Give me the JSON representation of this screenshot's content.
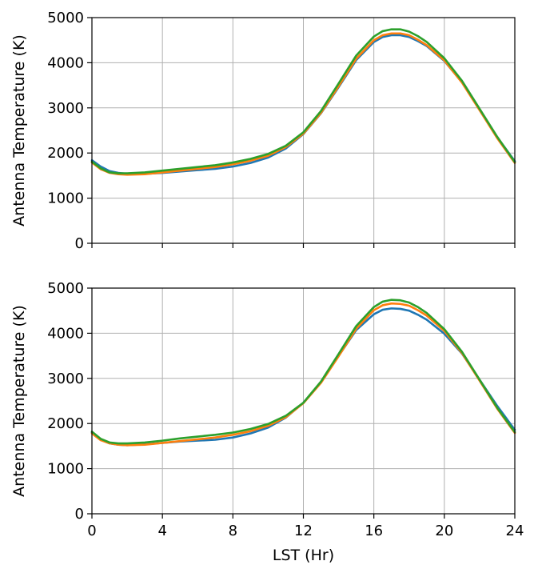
{
  "chart_data": [
    {
      "type": "line",
      "ylabel": "Antenna Temperature (K)",
      "xlabel": "",
      "xlim": [
        0,
        24
      ],
      "ylim": [
        0,
        5000
      ],
      "xticks": [
        0,
        4,
        8,
        12,
        16,
        20,
        24
      ],
      "xtick_labels_visible": false,
      "yticks": [
        0,
        1000,
        2000,
        3000,
        4000,
        5000
      ],
      "grid": true,
      "x": [
        0,
        0.5,
        1,
        1.5,
        2,
        3,
        4,
        5,
        6,
        7,
        8,
        9,
        10,
        11,
        12,
        13,
        14,
        15,
        16,
        16.5,
        17,
        17.5,
        18,
        18.5,
        19,
        20,
        21,
        22,
        23,
        24
      ],
      "series": [
        {
          "color": "#1f77b4",
          "values": [
            1840,
            1700,
            1600,
            1560,
            1540,
            1540,
            1560,
            1590,
            1620,
            1650,
            1700,
            1780,
            1900,
            2100,
            2420,
            2880,
            3460,
            4060,
            4460,
            4570,
            4610,
            4610,
            4570,
            4480,
            4370,
            4040,
            3570,
            2960,
            2350,
            1820
          ]
        },
        {
          "color": "#ff7f0e",
          "values": [
            1790,
            1640,
            1560,
            1530,
            1520,
            1530,
            1570,
            1610,
            1650,
            1690,
            1750,
            1830,
            1940,
            2130,
            2430,
            2890,
            3480,
            4090,
            4500,
            4610,
            4650,
            4650,
            4610,
            4510,
            4390,
            4050,
            3560,
            2950,
            2330,
            1780
          ]
        },
        {
          "color": "#2ca02c",
          "values": [
            1810,
            1660,
            1570,
            1550,
            1550,
            1570,
            1610,
            1650,
            1690,
            1730,
            1790,
            1870,
            1980,
            2160,
            2460,
            2930,
            3540,
            4160,
            4580,
            4700,
            4740,
            4740,
            4690,
            4590,
            4460,
            4100,
            3600,
            2980,
            2360,
            1800
          ]
        }
      ]
    },
    {
      "type": "line",
      "ylabel": "Antenna Temperature (K)",
      "xlabel": "LST (Hr)",
      "xlim": [
        0,
        24
      ],
      "ylim": [
        0,
        5000
      ],
      "xticks": [
        0,
        4,
        8,
        12,
        16,
        20,
        24
      ],
      "xtick_labels_visible": true,
      "yticks": [
        0,
        1000,
        2000,
        3000,
        4000,
        5000
      ],
      "grid": true,
      "x": [
        0,
        0.5,
        1,
        1.5,
        2,
        3,
        4,
        5,
        6,
        7,
        8,
        9,
        10,
        11,
        12,
        13,
        14,
        15,
        16,
        16.5,
        17,
        17.5,
        18,
        18.5,
        19,
        20,
        21,
        22,
        23,
        24
      ],
      "series": [
        {
          "color": "#1f77b4",
          "values": [
            1800,
            1640,
            1560,
            1530,
            1520,
            1540,
            1570,
            1600,
            1620,
            1640,
            1690,
            1780,
            1910,
            2130,
            2460,
            2920,
            3500,
            4070,
            4420,
            4520,
            4550,
            4540,
            4500,
            4410,
            4300,
            3990,
            3550,
            2970,
            2390,
            1860
          ]
        },
        {
          "color": "#ff7f0e",
          "values": [
            1780,
            1630,
            1560,
            1530,
            1520,
            1530,
            1570,
            1610,
            1650,
            1690,
            1750,
            1830,
            1950,
            2140,
            2450,
            2900,
            3490,
            4100,
            4510,
            4620,
            4660,
            4650,
            4610,
            4510,
            4390,
            4050,
            3560,
            2950,
            2330,
            1790
          ]
        },
        {
          "color": "#2ca02c",
          "values": [
            1820,
            1660,
            1580,
            1560,
            1560,
            1580,
            1620,
            1670,
            1710,
            1750,
            1800,
            1880,
            1990,
            2170,
            2460,
            2930,
            3540,
            4160,
            4580,
            4700,
            4740,
            4730,
            4680,
            4580,
            4450,
            4090,
            3590,
            2970,
            2350,
            1810
          ]
        }
      ]
    }
  ]
}
